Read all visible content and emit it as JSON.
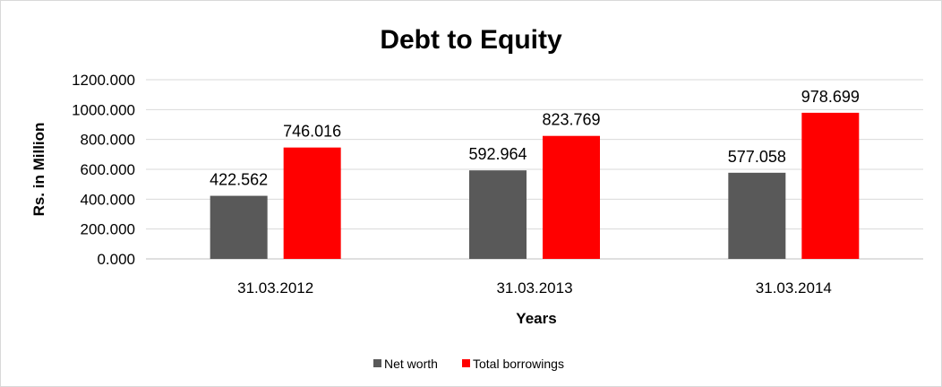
{
  "chart_data": {
    "type": "bar",
    "title": "Debt to Equity",
    "xlabel": "Years",
    "ylabel": "Rs. in Million",
    "categories": [
      "31.03.2012",
      "31.03.2013",
      "31.03.2014"
    ],
    "series": [
      {
        "name": "Net worth",
        "values": [
          422.562,
          592.964,
          577.058
        ],
        "color": "#595959"
      },
      {
        "name": "Total borrowings",
        "values": [
          746.016,
          823.769,
          978.699
        ],
        "color": "#ff0000"
      }
    ],
    "ylim": [
      0,
      1200
    ],
    "yticks": [
      "0.000",
      "200.000",
      "400.000",
      "600.000",
      "800.000",
      "1000.000",
      "1200.000"
    ],
    "data_labels": [
      [
        "422.562",
        "592.964",
        "577.058"
      ],
      [
        "746.016",
        "823.769",
        "978.699"
      ]
    ],
    "grid": true,
    "legend": "bottom"
  }
}
